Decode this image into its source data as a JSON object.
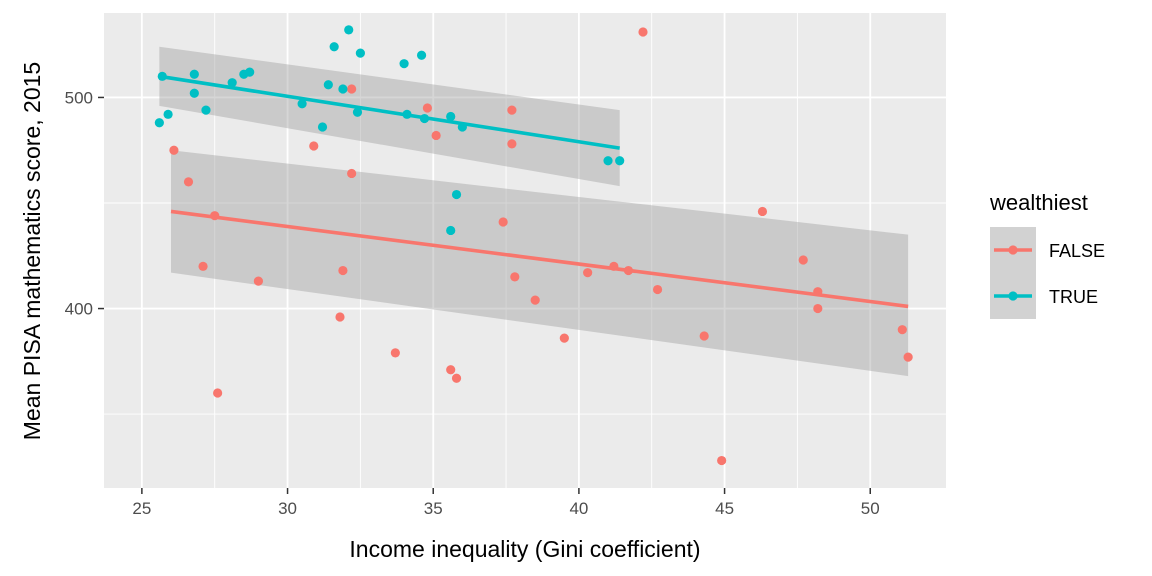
{
  "chart_data": {
    "type": "scatter",
    "title": "",
    "xlabel": "Income inequality (Gini coefficient)",
    "ylabel": "Mean PISA mathematics score, 2015",
    "xlim": [
      23.7,
      52.6
    ],
    "ylim": [
      315,
      540
    ],
    "x_ticks": [
      25,
      30,
      35,
      40,
      45,
      50
    ],
    "y_ticks": [
      400,
      500
    ],
    "grid": true,
    "legend": {
      "title": "wealthiest",
      "position": "right"
    },
    "series": [
      {
        "name": "FALSE",
        "color": "#F8766D",
        "points": [
          [
            26.1,
            475
          ],
          [
            26.6,
            460
          ],
          [
            27.1,
            420
          ],
          [
            27.5,
            444
          ],
          [
            27.6,
            360
          ],
          [
            29.0,
            413
          ],
          [
            30.9,
            477
          ],
          [
            31.8,
            396
          ],
          [
            31.9,
            418
          ],
          [
            32.2,
            504
          ],
          [
            32.2,
            464
          ],
          [
            33.7,
            379
          ],
          [
            34.8,
            495
          ],
          [
            35.1,
            482
          ],
          [
            35.6,
            371
          ],
          [
            35.8,
            367
          ],
          [
            37.4,
            441
          ],
          [
            37.7,
            494
          ],
          [
            37.7,
            478
          ],
          [
            37.8,
            415
          ],
          [
            38.5,
            404
          ],
          [
            39.5,
            386
          ],
          [
            40.3,
            417
          ],
          [
            41.2,
            420
          ],
          [
            41.7,
            418
          ],
          [
            42.2,
            531
          ],
          [
            42.7,
            409
          ],
          [
            44.3,
            387
          ],
          [
            44.9,
            328
          ],
          [
            46.3,
            446
          ],
          [
            47.7,
            423
          ],
          [
            48.2,
            408
          ],
          [
            48.2,
            400
          ],
          [
            51.1,
            390
          ],
          [
            51.3,
            377
          ]
        ],
        "trend": {
          "x": [
            26.0,
            51.3
          ],
          "y": [
            446,
            401
          ]
        },
        "ci_band": {
          "x": [
            26.0,
            51.3
          ],
          "upper": [
            475,
            435
          ],
          "lower": [
            417,
            368
          ]
        }
      },
      {
        "name": "TRUE",
        "color": "#00BFC4",
        "points": [
          [
            25.6,
            488
          ],
          [
            25.7,
            510
          ],
          [
            25.9,
            492
          ],
          [
            26.8,
            511
          ],
          [
            26.8,
            502
          ],
          [
            27.2,
            494
          ],
          [
            28.1,
            507
          ],
          [
            28.5,
            511
          ],
          [
            28.7,
            512
          ],
          [
            30.5,
            497
          ],
          [
            31.2,
            486
          ],
          [
            31.4,
            506
          ],
          [
            31.6,
            524
          ],
          [
            31.9,
            504
          ],
          [
            32.1,
            532
          ],
          [
            32.4,
            493
          ],
          [
            32.5,
            521
          ],
          [
            34.0,
            516
          ],
          [
            34.1,
            492
          ],
          [
            34.6,
            520
          ],
          [
            34.7,
            490
          ],
          [
            35.6,
            491
          ],
          [
            35.6,
            437
          ],
          [
            35.8,
            454
          ],
          [
            36.0,
            486
          ],
          [
            41.0,
            470
          ],
          [
            41.4,
            470
          ]
        ],
        "trend": {
          "x": [
            25.6,
            41.4
          ],
          "y": [
            510,
            476
          ]
        },
        "ci_band": {
          "x": [
            25.6,
            41.4
          ],
          "upper": [
            524,
            494
          ],
          "lower": [
            496,
            458
          ]
        }
      }
    ]
  }
}
